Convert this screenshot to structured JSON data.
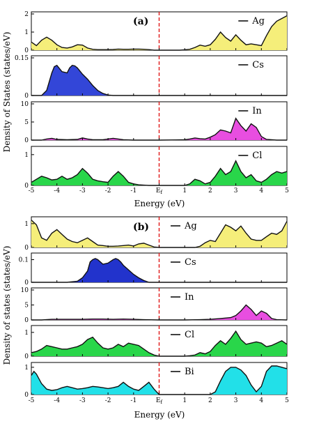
{
  "figure": {
    "panel_group_a": {
      "label": "(a)",
      "ylabel": "Density of States (states/eV)",
      "xlabel": "Energy (eV)",
      "x_ticks": [
        "-5",
        "-4",
        "-3",
        "-2",
        "-1",
        "E",
        "1",
        "2",
        "3",
        "4",
        "5"
      ],
      "ef_subscript": "f"
    },
    "panel_group_b": {
      "label": "(b)",
      "ylabel": "Density of states (states/eV)",
      "xlabel": "Energy (eV)",
      "x_ticks": [
        "-5",
        "-4",
        "-3",
        "-2",
        "-1",
        "E",
        "1",
        "2",
        "3",
        "4",
        "5"
      ],
      "ef_subscript": "f"
    }
  },
  "chart_data": [
    {
      "type": "area",
      "group": "a",
      "series_name": "Ag",
      "color": "#f5ee7a",
      "xlim": [
        -5,
        5
      ],
      "yticks": [
        "0",
        "1",
        "2"
      ],
      "ylim": [
        0,
        2
      ],
      "x": [
        -5,
        -4.8,
        -4.6,
        -4.4,
        -4.2,
        -4.0,
        -3.8,
        -3.6,
        -3.4,
        -3.2,
        -3.0,
        -2.8,
        -2.6,
        -2.4,
        -2.2,
        -2.0,
        -1.8,
        -1.6,
        -1.4,
        -1.2,
        -1.0,
        -0.8,
        -0.6,
        -0.4,
        -0.2,
        0,
        0.2,
        0.4,
        0.6,
        0.8,
        1.0,
        1.2,
        1.4,
        1.6,
        1.8,
        2.0,
        2.2,
        2.4,
        2.6,
        2.8,
        3.0,
        3.2,
        3.4,
        3.6,
        3.8,
        4.0,
        4.2,
        4.4,
        4.6,
        4.8,
        5.0
      ],
      "values": [
        0.45,
        0.25,
        0.55,
        0.72,
        0.55,
        0.3,
        0.15,
        0.12,
        0.18,
        0.3,
        0.28,
        0.12,
        0.05,
        0.03,
        0.03,
        0.03,
        0.04,
        0.06,
        0.05,
        0.05,
        0.06,
        0.06,
        0.05,
        0.03,
        0,
        0,
        0,
        0,
        0,
        0,
        0.02,
        0.05,
        0.15,
        0.28,
        0.22,
        0.3,
        0.6,
        1.0,
        0.7,
        0.5,
        0.85,
        0.55,
        0.3,
        0.35,
        0.3,
        0.25,
        0.8,
        1.3,
        1.6,
        1.75,
        1.9
      ]
    },
    {
      "type": "area",
      "group": "a",
      "series_name": "Cs",
      "color": "#3346d8",
      "xlim": [
        -5,
        5
      ],
      "yticks": [
        "0",
        "0.15"
      ],
      "ylim": [
        0,
        0.15
      ],
      "x": [
        -5,
        -4.6,
        -4.4,
        -4.2,
        -4.1,
        -4.0,
        -3.8,
        -3.6,
        -3.5,
        -3.4,
        -3.3,
        -3.2,
        -3.0,
        -2.8,
        -2.6,
        -2.4,
        -2.2,
        -2.0,
        -1.8,
        -1.4,
        0,
        5
      ],
      "values": [
        0,
        0,
        0.02,
        0.09,
        0.115,
        0.12,
        0.095,
        0.09,
        0.11,
        0.12,
        0.118,
        0.11,
        0.085,
        0.065,
        0.04,
        0.02,
        0.008,
        0.002,
        0,
        0,
        0,
        0
      ]
    },
    {
      "type": "area",
      "group": "a",
      "series_name": "In",
      "color": "#e84ee0",
      "xlim": [
        -5,
        5
      ],
      "yticks": [
        "0",
        "5",
        "10"
      ],
      "ylim": [
        0,
        10
      ],
      "x": [
        -5,
        -4.6,
        -4.4,
        -4.2,
        -4.0,
        -3.6,
        -3.2,
        -3.0,
        -2.8,
        -2.6,
        -2.2,
        -2.0,
        -1.8,
        -1.6,
        -1.4,
        -1.0,
        0,
        1.0,
        1.2,
        1.4,
        1.6,
        1.8,
        2.0,
        2.2,
        2.4,
        2.6,
        2.8,
        3.0,
        3.2,
        3.4,
        3.6,
        3.8,
        4.0,
        4.2,
        4.6,
        5.0
      ],
      "values": [
        0,
        0,
        0.3,
        0.5,
        0.2,
        0.1,
        0.2,
        0.6,
        0.3,
        0.1,
        0.1,
        0.3,
        0.5,
        0.3,
        0.1,
        0,
        0,
        0.1,
        0.3,
        0.6,
        0.4,
        0.3,
        0.8,
        1.5,
        2.8,
        2.5,
        2.0,
        6.0,
        4.0,
        2.5,
        4.5,
        3.5,
        1.0,
        0.2,
        0,
        0
      ]
    },
    {
      "type": "area",
      "group": "a",
      "series_name": "Cl",
      "color": "#29d64a",
      "xlim": [
        -5,
        5
      ],
      "yticks": [
        "0",
        "1"
      ],
      "ylim": [
        0,
        1.2
      ],
      "x": [
        -5,
        -4.8,
        -4.6,
        -4.4,
        -4.2,
        -4.0,
        -3.8,
        -3.6,
        -3.4,
        -3.2,
        -3.0,
        -2.8,
        -2.6,
        -2.4,
        -2.2,
        -2.0,
        -1.8,
        -1.6,
        -1.4,
        -1.2,
        -1.0,
        -0.8,
        -0.6,
        -0.4,
        -0.2,
        0,
        0.2,
        0.4,
        0.6,
        0.8,
        1.0,
        1.2,
        1.4,
        1.6,
        1.8,
        2.0,
        2.2,
        2.4,
        2.6,
        2.8,
        3.0,
        3.2,
        3.4,
        3.6,
        3.8,
        4.0,
        4.2,
        4.4,
        4.6,
        4.8,
        5.0
      ],
      "values": [
        0.1,
        0.2,
        0.3,
        0.25,
        0.18,
        0.2,
        0.3,
        0.2,
        0.25,
        0.35,
        0.55,
        0.4,
        0.2,
        0.15,
        0.12,
        0.1,
        0.3,
        0.45,
        0.3,
        0.1,
        0.05,
        0.02,
        0.01,
        0,
        0,
        0,
        0,
        0,
        0,
        0,
        0,
        0.05,
        0.2,
        0.15,
        0.05,
        0.1,
        0.3,
        0.55,
        0.35,
        0.45,
        0.8,
        0.45,
        0.25,
        0.35,
        0.15,
        0.1,
        0.2,
        0.35,
        0.45,
        0.4,
        0.45
      ]
    },
    {
      "type": "area",
      "group": "b",
      "series_name": "Ag",
      "color": "#f5ee7a",
      "xlim": [
        -5,
        5
      ],
      "yticks": [
        "0",
        "1"
      ],
      "ylim": [
        0,
        1.2
      ],
      "x": [
        -5,
        -4.8,
        -4.6,
        -4.4,
        -4.2,
        -4.0,
        -3.8,
        -3.6,
        -3.4,
        -3.2,
        -3.0,
        -2.8,
        -2.6,
        -2.4,
        -2.2,
        -2.0,
        -1.8,
        -1.6,
        -1.4,
        -1.2,
        -1.0,
        -0.8,
        -0.6,
        -0.4,
        -0.2,
        0,
        0.2,
        0.4,
        0.6,
        0.8,
        1.0,
        1.2,
        1.4,
        1.6,
        1.8,
        2.0,
        2.2,
        2.4,
        2.6,
        2.8,
        3.0,
        3.2,
        3.4,
        3.6,
        3.8,
        4.0,
        4.2,
        4.4,
        4.6,
        4.8,
        5.0
      ],
      "values": [
        1.15,
        0.95,
        0.4,
        0.3,
        0.6,
        0.75,
        0.55,
        0.35,
        0.25,
        0.2,
        0.3,
        0.4,
        0.25,
        0.1,
        0.08,
        0.05,
        0.05,
        0.06,
        0.08,
        0.1,
        0.06,
        0.15,
        0.18,
        0.1,
        0.02,
        0,
        0,
        0,
        0,
        0,
        0,
        0,
        0,
        0.05,
        0.2,
        0.3,
        0.25,
        0.6,
        0.95,
        0.85,
        0.7,
        0.9,
        0.6,
        0.35,
        0.3,
        0.3,
        0.45,
        0.6,
        0.55,
        0.7,
        1.1
      ]
    },
    {
      "type": "area",
      "group": "b",
      "series_name": "Cs",
      "color": "#2233cc",
      "xlim": [
        -5,
        5
      ],
      "yticks": [
        "0",
        "0.1"
      ],
      "ylim": [
        0,
        0.12
      ],
      "x": [
        -5,
        -3.6,
        -3.2,
        -3.0,
        -2.8,
        -2.7,
        -2.6,
        -2.5,
        -2.4,
        -2.2,
        -2.0,
        -1.8,
        -1.7,
        -1.6,
        -1.5,
        -1.4,
        -1.2,
        -1.0,
        -0.8,
        -0.6,
        -0.4,
        0,
        5
      ],
      "values": [
        0,
        0,
        0.005,
        0.02,
        0.05,
        0.09,
        0.1,
        0.105,
        0.1,
        0.08,
        0.085,
        0.1,
        0.105,
        0.1,
        0.09,
        0.075,
        0.055,
        0.035,
        0.02,
        0.008,
        0,
        0,
        0
      ]
    },
    {
      "type": "area",
      "group": "b",
      "series_name": "In",
      "color": "#e84ee0",
      "xlim": [
        -5,
        5
      ],
      "yticks": [
        "0",
        "5",
        "10"
      ],
      "ylim": [
        0,
        10
      ],
      "x": [
        -5,
        -4.6,
        -4.2,
        -3.8,
        -3.4,
        -3.0,
        -2.6,
        -2.2,
        -1.8,
        -1.4,
        -1.0,
        -0.6,
        0,
        1.0,
        1.6,
        2.0,
        2.4,
        2.8,
        3.0,
        3.2,
        3.4,
        3.6,
        3.8,
        4.0,
        4.2,
        4.4,
        4.6,
        5.0
      ],
      "values": [
        0,
        0,
        0.2,
        0.2,
        0.2,
        0.2,
        0.3,
        0.3,
        0.2,
        0.3,
        0.2,
        0.1,
        0,
        0,
        0.1,
        0.2,
        0.5,
        0.8,
        1.5,
        3.0,
        5.0,
        3.5,
        1.5,
        3.0,
        2.2,
        0.5,
        0.1,
        0
      ]
    },
    {
      "type": "area",
      "group": "b",
      "series_name": "Cl",
      "color": "#29d64a",
      "xlim": [
        -5,
        5
      ],
      "yticks": [
        "0",
        "1"
      ],
      "ylim": [
        0,
        1.2
      ],
      "x": [
        -5,
        -4.8,
        -4.6,
        -4.4,
        -4.2,
        -4.0,
        -3.8,
        -3.6,
        -3.4,
        -3.2,
        -3.0,
        -2.8,
        -2.6,
        -2.4,
        -2.2,
        -2.0,
        -1.8,
        -1.6,
        -1.4,
        -1.2,
        -1.0,
        -0.8,
        -0.6,
        -0.4,
        -0.2,
        0,
        0.2,
        0.4,
        0.6,
        0.8,
        1.0,
        1.2,
        1.4,
        1.6,
        1.8,
        2.0,
        2.2,
        2.4,
        2.6,
        2.8,
        3.0,
        3.2,
        3.4,
        3.6,
        3.8,
        4.0,
        4.2,
        4.4,
        4.6,
        4.8,
        5.0
      ],
      "values": [
        0.15,
        0.2,
        0.3,
        0.45,
        0.4,
        0.35,
        0.3,
        0.3,
        0.35,
        0.4,
        0.5,
        0.7,
        0.8,
        0.55,
        0.35,
        0.3,
        0.35,
        0.5,
        0.4,
        0.55,
        0.5,
        0.45,
        0.3,
        0.15,
        0.05,
        0,
        0,
        0,
        0,
        0,
        0,
        0.02,
        0.05,
        0.15,
        0.1,
        0.2,
        0.45,
        0.65,
        0.5,
        0.75,
        1.05,
        0.7,
        0.5,
        0.55,
        0.6,
        0.55,
        0.4,
        0.45,
        0.55,
        0.65,
        0.5
      ]
    },
    {
      "type": "area",
      "group": "b",
      "series_name": "Bi",
      "color": "#22e0e8",
      "xlim": [
        -5,
        5
      ],
      "yticks": [
        "0",
        "1"
      ],
      "ylim": [
        0,
        1.1
      ],
      "x": [
        -5,
        -4.9,
        -4.8,
        -4.6,
        -4.4,
        -4.2,
        -4.0,
        -3.8,
        -3.6,
        -3.4,
        -3.2,
        -3.0,
        -2.8,
        -2.6,
        -2.4,
        -2.2,
        -2.0,
        -1.8,
        -1.6,
        -1.4,
        -1.2,
        -1.0,
        -0.8,
        -0.6,
        -0.4,
        -0.2,
        0,
        1.0,
        2.0,
        2.2,
        2.4,
        2.6,
        2.8,
        3.0,
        3.2,
        3.4,
        3.6,
        3.8,
        4.0,
        4.2,
        4.4,
        4.6,
        4.8,
        5.0
      ],
      "values": [
        0.7,
        0.85,
        0.75,
        0.4,
        0.2,
        0.15,
        0.18,
        0.25,
        0.3,
        0.25,
        0.2,
        0.22,
        0.25,
        0.3,
        0.28,
        0.25,
        0.22,
        0.25,
        0.3,
        0.45,
        0.3,
        0.2,
        0.15,
        0.3,
        0.45,
        0.2,
        0,
        0,
        0,
        0.1,
        0.5,
        0.85,
        1.0,
        1.0,
        0.9,
        0.7,
        0.35,
        0.1,
        0.3,
        0.85,
        1.05,
        1.05,
        1.0,
        0.95
      ]
    }
  ]
}
